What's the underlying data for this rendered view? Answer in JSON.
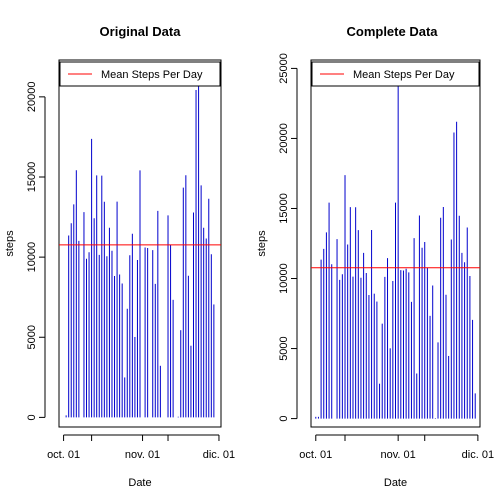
{
  "chart_data": [
    {
      "type": "bar",
      "title": "Original Data",
      "xlabel": "Date",
      "ylabel": "steps",
      "ylim": [
        -600,
        22300
      ],
      "xlim": [
        -1.8,
        61.8
      ],
      "y_ticks": [
        0,
        5000,
        10000,
        15000,
        20000
      ],
      "y_tick_labels": [
        "0",
        "5000",
        "10000",
        "15000",
        "20000"
      ],
      "x_ticks": [
        0,
        11,
        31,
        41,
        61
      ],
      "x_tick_labels": [
        "oct. 01",
        "",
        "nov. 01",
        "",
        "dic. 01"
      ],
      "bar_color": "#0000cd",
      "grid": false,
      "legend": {
        "position": "top",
        "entries": [
          {
            "label": "Mean Steps Per Day",
            "color": "#ff0000"
          }
        ]
      },
      "reference_line": {
        "label": "Mean Steps Per Day",
        "value": 10766,
        "color": "#ff0000"
      },
      "x_dates": [
        "2012-10-01",
        "2012-10-02",
        "2012-10-03",
        "2012-10-04",
        "2012-10-05",
        "2012-10-06",
        "2012-10-07",
        "2012-10-08",
        "2012-10-09",
        "2012-10-10",
        "2012-10-11",
        "2012-10-12",
        "2012-10-13",
        "2012-10-14",
        "2012-10-15",
        "2012-10-16",
        "2012-10-17",
        "2012-10-18",
        "2012-10-19",
        "2012-10-20",
        "2012-10-21",
        "2012-10-22",
        "2012-10-23",
        "2012-10-24",
        "2012-10-25",
        "2012-10-26",
        "2012-10-27",
        "2012-10-28",
        "2012-10-29",
        "2012-10-30",
        "2012-10-31",
        "2012-11-01",
        "2012-11-02",
        "2012-11-03",
        "2012-11-04",
        "2012-11-05",
        "2012-11-06",
        "2012-11-07",
        "2012-11-08",
        "2012-11-09",
        "2012-11-10",
        "2012-11-11",
        "2012-11-12",
        "2012-11-13",
        "2012-11-14",
        "2012-11-15",
        "2012-11-16",
        "2012-11-17",
        "2012-11-18",
        "2012-11-19",
        "2012-11-20",
        "2012-11-21",
        "2012-11-22",
        "2012-11-23",
        "2012-11-24",
        "2012-11-25",
        "2012-11-26",
        "2012-11-27",
        "2012-11-28",
        "2012-11-29",
        "2012-11-30"
      ],
      "values": [
        0,
        126,
        11352,
        12116,
        13294,
        15420,
        11015,
        0,
        12811,
        9900,
        10304,
        17382,
        12426,
        15098,
        10139,
        15084,
        13452,
        10056,
        11829,
        10395,
        8821,
        13460,
        8918,
        8355,
        2492,
        6778,
        10119,
        11458,
        5018,
        9819,
        15414,
        0,
        10600,
        10571,
        0,
        10439,
        8334,
        12883,
        3219,
        0,
        0,
        12608,
        10765,
        7336,
        0,
        41,
        5441,
        14339,
        15110,
        8841,
        4472,
        12787,
        20427,
        21194,
        14478,
        11834,
        11162,
        13646,
        10183,
        7047,
        0
      ]
    },
    {
      "type": "bar",
      "title": "Complete Data",
      "xlabel": "Date",
      "ylabel": "steps",
      "ylim": [
        -600,
        25600
      ],
      "xlim": [
        -1.8,
        61.8
      ],
      "y_ticks": [
        0,
        5000,
        10000,
        15000,
        20000,
        25000
      ],
      "y_tick_labels": [
        "0",
        "5000",
        "10000",
        "15000",
        "20000",
        "25000"
      ],
      "x_ticks": [
        0,
        11,
        31,
        41,
        61
      ],
      "x_tick_labels": [
        "oct. 01",
        "",
        "nov. 01",
        "",
        "dic. 01"
      ],
      "bar_color": "#0000cd",
      "grid": false,
      "legend": {
        "position": "top",
        "entries": [
          {
            "label": "Mean Steps Per Day",
            "color": "#ff0000"
          }
        ]
      },
      "reference_line": {
        "label": "Mean Steps Per Day",
        "value": 10766,
        "color": "#ff0000"
      },
      "x_dates": [
        "2012-10-01",
        "2012-10-02",
        "2012-10-03",
        "2012-10-04",
        "2012-10-05",
        "2012-10-06",
        "2012-10-07",
        "2012-10-08",
        "2012-10-09",
        "2012-10-10",
        "2012-10-11",
        "2012-10-12",
        "2012-10-13",
        "2012-10-14",
        "2012-10-15",
        "2012-10-16",
        "2012-10-17",
        "2012-10-18",
        "2012-10-19",
        "2012-10-20",
        "2012-10-21",
        "2012-10-22",
        "2012-10-23",
        "2012-10-24",
        "2012-10-25",
        "2012-10-26",
        "2012-10-27",
        "2012-10-28",
        "2012-10-29",
        "2012-10-30",
        "2012-10-31",
        "2012-11-01",
        "2012-11-02",
        "2012-11-03",
        "2012-11-04",
        "2012-11-05",
        "2012-11-06",
        "2012-11-07",
        "2012-11-08",
        "2012-11-09",
        "2012-11-10",
        "2012-11-11",
        "2012-11-12",
        "2012-11-13",
        "2012-11-14",
        "2012-11-15",
        "2012-11-16",
        "2012-11-17",
        "2012-11-18",
        "2012-11-19",
        "2012-11-20",
        "2012-11-21",
        "2012-11-22",
        "2012-11-23",
        "2012-11-24",
        "2012-11-25",
        "2012-11-26",
        "2012-11-27",
        "2012-11-28",
        "2012-11-29",
        "2012-11-30"
      ],
      "values": [
        126,
        126,
        11352,
        12116,
        13294,
        15420,
        11015,
        0,
        12811,
        9900,
        10304,
        17382,
        12426,
        15098,
        10139,
        15084,
        13452,
        10056,
        11829,
        10395,
        8821,
        13460,
        8918,
        8355,
        2492,
        6778,
        10119,
        11458,
        5018,
        9819,
        15414,
        24000,
        10600,
        10571,
        10700,
        10439,
        8334,
        12883,
        3219,
        14500,
        12200,
        12608,
        10765,
        7336,
        9500,
        41,
        5441,
        14339,
        15110,
        8841,
        4472,
        12787,
        20427,
        21194,
        14478,
        11834,
        11162,
        13646,
        10183,
        7047,
        1800
      ]
    }
  ]
}
